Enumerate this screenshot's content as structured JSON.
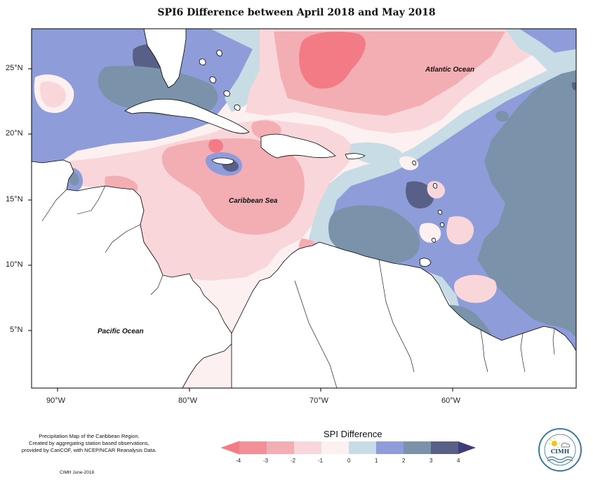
{
  "title": "SPI6 Difference between April 2018 and May 2018",
  "axes": {
    "y_ticks": [
      "25°N",
      "20°N",
      "15°N",
      "10°N",
      "5°N"
    ],
    "x_ticks": [
      "90°W",
      "80°W",
      "70°W",
      "60°W"
    ]
  },
  "map_labels": {
    "atlantic": "Atlantic Ocean",
    "caribbean": "Caribbean Sea",
    "pacific": "Pacific Ocean"
  },
  "legend": {
    "title": "SPI Difference",
    "ticks": [
      "-4",
      "-3",
      "-2",
      "-1",
      "0",
      "1",
      "2",
      "3",
      "4"
    ],
    "colors": [
      "#f27b86",
      "#f3aeb3",
      "#f9d6d9",
      "#fdf0f1",
      "#c7dce5",
      "#8e9dda",
      "#7b92ab",
      "#586088"
    ]
  },
  "credits": {
    "line1": "Precipitation Map of the Caribbean Region.",
    "line2": "Created by aggregating station based observations,",
    "line3": "provided by CariCOF, with NCEP/NCAR Reanalysis Data.",
    "footer": "CIMH June-2018"
  },
  "logo": {
    "text": "CIMH"
  }
}
